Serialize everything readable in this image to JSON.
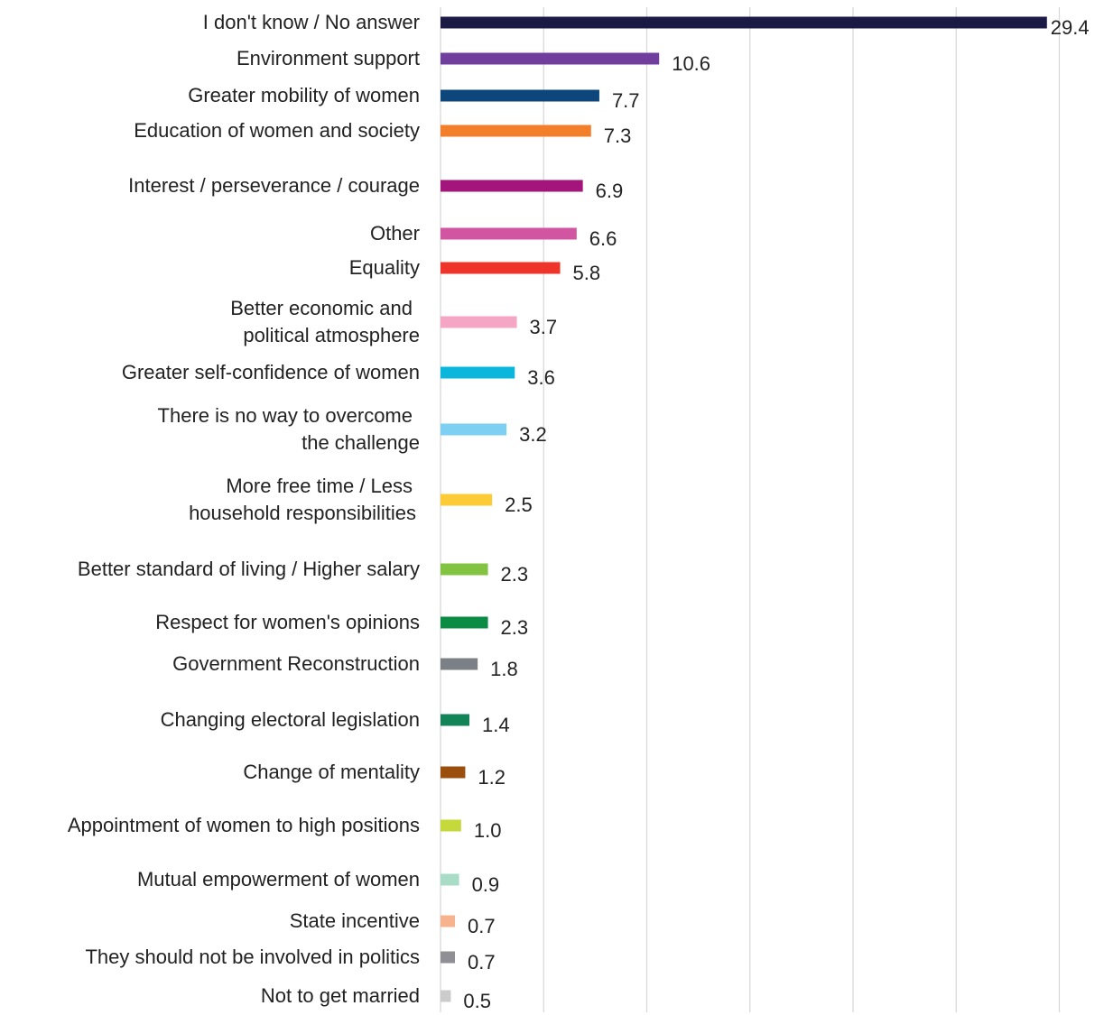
{
  "chart_data": {
    "type": "bar",
    "orientation": "horizontal",
    "categories": [
      "I don't know / No answer",
      "Environment support",
      "Greater mobility of women",
      "Education of women and society",
      "Interest / perseverance / courage",
      "Other",
      "Equality",
      "Better economic and political atmosphere",
      "Greater self-confidence of women",
      "There is no way to overcome the challenge",
      "More free time / Less household responsibilities",
      "Better standard of living / Higher salary",
      "Respect for women's opinions",
      "Government Reconstruction",
      "Changing electoral legislation",
      "Change of mentality",
      "Appointment of women to high positions",
      "Mutual empowerment of women",
      "State incentive",
      "They should not be involved in politics",
      "Not to get married"
    ],
    "values": [
      29.4,
      10.6,
      7.7,
      7.3,
      6.9,
      6.6,
      5.8,
      3.7,
      3.6,
      3.2,
      2.5,
      2.3,
      2.3,
      1.8,
      1.4,
      1.2,
      1.0,
      0.9,
      0.7,
      0.7,
      0.5
    ],
    "value_labels": [
      "29.4",
      "10.6",
      "7.7",
      "7.3",
      "6.9",
      "6.6",
      "5.8",
      "3.7",
      "3.6",
      "3.2",
      "2.5",
      "2.3",
      "2.3",
      "1.8",
      "1.4",
      "1.2",
      "1.0",
      "0.9",
      "0.7",
      "0.7",
      "0.5"
    ],
    "colors": [
      "#1b1a45",
      "#703e9c",
      "#0d467a",
      "#f47f2b",
      "#a3157a",
      "#d255a2",
      "#ef3529",
      "#f4a6c4",
      "#0bb6dd",
      "#7dd0f1",
      "#fccb36",
      "#82c341",
      "#0b8b43",
      "#7b7f86",
      "#128457",
      "#9b4f0c",
      "#c5da3a",
      "#a8dcc6",
      "#f6b38e",
      "#8f8f95",
      "#cbcbcb"
    ],
    "xlim": [
      0,
      30
    ],
    "grid": true,
    "title": "",
    "xlabel": "",
    "ylabel": "",
    "legend": "none"
  }
}
